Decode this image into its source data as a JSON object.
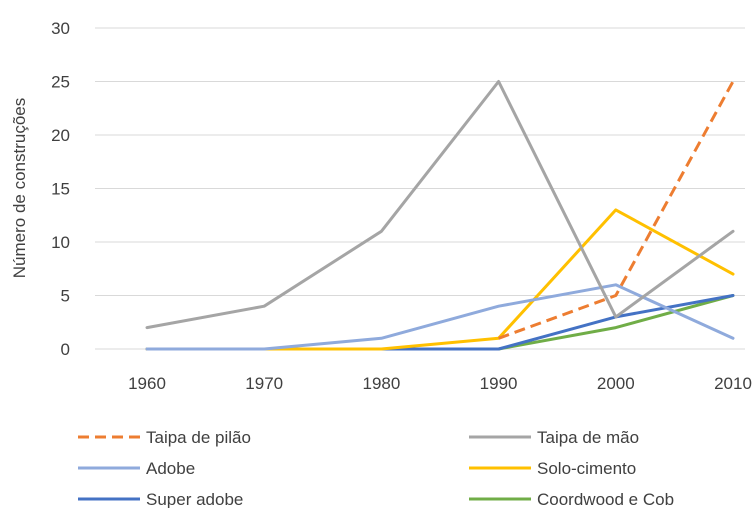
{
  "chart_data": {
    "type": "line",
    "title": "",
    "xlabel": "",
    "ylabel": "Número de construções",
    "x": [
      "1960",
      "1970",
      "1980",
      "1990",
      "2000",
      "2010"
    ],
    "ylim": [
      0,
      30
    ],
    "yticks": [
      "0",
      "5",
      "10",
      "15",
      "20",
      "25",
      "30"
    ],
    "grid": true,
    "legend_position": "bottom",
    "series": [
      {
        "name": "Taipa de pilão",
        "color": "#ED7D31",
        "dashed": true,
        "values": [
          null,
          null,
          null,
          1,
          5,
          25
        ]
      },
      {
        "name": "Taipa de mão",
        "color": "#A5A5A5",
        "dashed": false,
        "values": [
          2,
          4,
          11,
          25,
          3,
          11
        ]
      },
      {
        "name": "Adobe",
        "color": "#8FAADC",
        "dashed": false,
        "values": [
          0,
          0,
          1,
          4,
          6,
          1
        ]
      },
      {
        "name": "Solo-cimento",
        "color": "#FFC000",
        "dashed": false,
        "values": [
          0,
          0,
          0,
          1,
          13,
          7
        ]
      },
      {
        "name": "Super adobe",
        "color": "#4472C4",
        "dashed": false,
        "values": [
          0,
          0,
          0,
          0,
          3,
          5
        ]
      },
      {
        "name": "Coordwood e Cob",
        "color": "#70AD47",
        "dashed": false,
        "values": [
          0,
          0,
          0,
          0,
          2,
          5
        ]
      }
    ]
  }
}
